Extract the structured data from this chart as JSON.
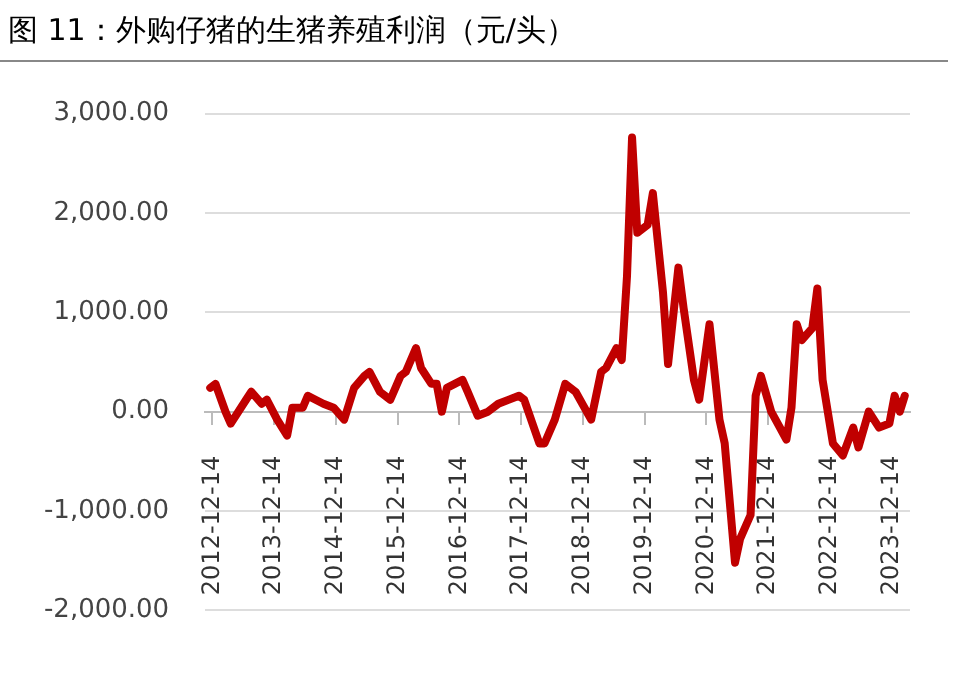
{
  "chart_data": {
    "type": "line",
    "title": "图 11：外购仔猪的生猪养殖利润（元/头）",
    "x": [
      "2012-12",
      "2013-01",
      "2013-03",
      "2013-04",
      "2013-07",
      "2013-08",
      "2013-10",
      "2013-11",
      "2014-01",
      "2014-03",
      "2014-04",
      "2014-06",
      "2014-07",
      "2014-10",
      "2014-12",
      "2015-02",
      "2015-04",
      "2015-06",
      "2015-07",
      "2015-09",
      "2015-11",
      "2016-01",
      "2016-02",
      "2016-04",
      "2016-05",
      "2016-07",
      "2016-08",
      "2016-09",
      "2016-10",
      "2017-01",
      "2017-02",
      "2017-04",
      "2017-06",
      "2017-08",
      "2017-12",
      "2018-01",
      "2018-04",
      "2018-05",
      "2018-07",
      "2018-09",
      "2018-11",
      "2019-02",
      "2019-04",
      "2019-05",
      "2019-07",
      "2019-08",
      "2019-09",
      "2019-10",
      "2019-11",
      "2020-01",
      "2020-02",
      "2020-04",
      "2020-05",
      "2020-07",
      "2020-08",
      "2020-10",
      "2020-11",
      "2021-01",
      "2021-03",
      "2021-04",
      "2021-06",
      "2021-07",
      "2021-09",
      "2021-10",
      "2021-11",
      "2022-01",
      "2022-04",
      "2022-05",
      "2022-06",
      "2022-07",
      "2022-09",
      "2022-10",
      "2022-11",
      "2023-01",
      "2023-03",
      "2023-05",
      "2023-06",
      "2023-08",
      "2023-10",
      "2023-12",
      "2024-01",
      "2024-02",
      "2024-03"
    ],
    "series": [
      {
        "color": "#c00000",
        "values": [
          240,
          280,
          0,
          -120,
          120,
          200,
          80,
          120,
          -80,
          -240,
          40,
          40,
          160,
          80,
          40,
          -80,
          240,
          360,
          400,
          200,
          120,
          360,
          400,
          640,
          440,
          280,
          280,
          0,
          240,
          320,
          200,
          -40,
          0,
          80,
          160,
          120,
          -320,
          -320,
          -80,
          280,
          200,
          -80,
          400,
          440,
          640,
          520,
          1360,
          2760,
          1800,
          1880,
          2200,
          1200,
          480,
          1450,
          1040,
          320,
          120,
          880,
          -80,
          -320,
          -1520,
          -1280,
          -1040,
          160,
          360,
          0,
          -280,
          40,
          880,
          720,
          840,
          1240,
          320,
          -320,
          -440,
          -160,
          -360,
          0,
          -160,
          -120,
          160,
          0,
          160
        ]
      }
    ],
    "xlim": [
      "2012-11",
      "2024-04"
    ],
    "xticks": [
      "2012-12-14",
      "2013-12-14",
      "2014-12-14",
      "2015-12-14",
      "2016-12-14",
      "2017-12-14",
      "2018-12-14",
      "2019-12-14",
      "2020-12-14",
      "2021-12-14",
      "2022-12-14",
      "2023-12-14"
    ],
    "ylim": [
      -2000,
      3000
    ],
    "yticks": [
      {
        "value": -2000,
        "label": "-2,000.00"
      },
      {
        "value": -1000,
        "label": "-1,000.00"
      },
      {
        "value": 0,
        "label": "0.00"
      },
      {
        "value": 1000,
        "label": "1,000.00"
      },
      {
        "value": 2000,
        "label": "2,000.00"
      },
      {
        "value": 3000,
        "label": "3,000.00"
      }
    ],
    "grid": "y",
    "legend": false,
    "marker": "none",
    "line_style": "solid"
  }
}
